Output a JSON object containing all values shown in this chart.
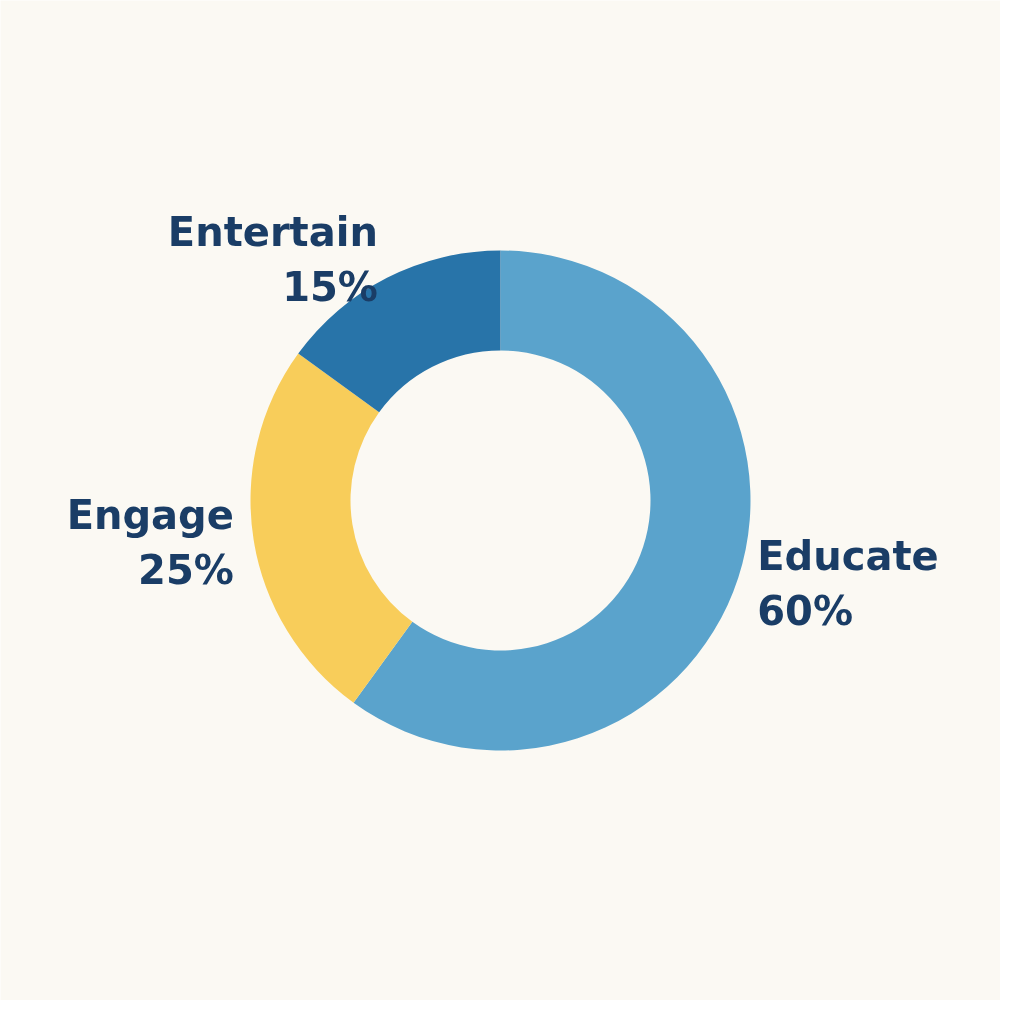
{
  "chart_data": {
    "type": "donut",
    "categories": [
      "Educate",
      "Engage",
      "Entertain"
    ],
    "values": [
      60,
      25,
      15
    ],
    "value_labels": [
      "60%",
      "25%",
      "15%"
    ],
    "colors": [
      "#5aa3cc",
      "#f8cd5a",
      "#2874a9"
    ]
  }
}
